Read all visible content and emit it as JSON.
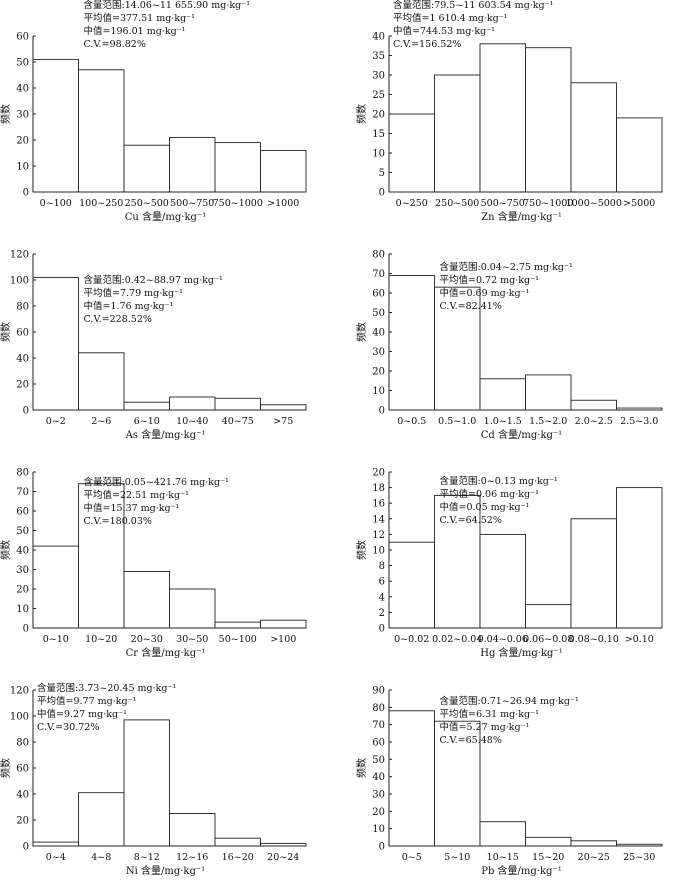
{
  "chart_data": [
    {
      "type": "bar",
      "ylabel": "频数",
      "xlabel": "Cu 含量/mg·kg⁻¹",
      "categories": [
        "0~100",
        "100~250",
        "250~500",
        "500~750",
        "750~1000",
        ">1000"
      ],
      "values": [
        51,
        47,
        18,
        21,
        19,
        16
      ],
      "ylim": [
        0,
        60
      ],
      "yticks": [
        0,
        10,
        20,
        30,
        40,
        50,
        60
      ],
      "stats": [
        "含量范围:14.06~11 655.90 mg·kg⁻¹",
        "平均值=377.51 mg·kg⁻¹",
        "中值=196.01 mg·kg⁻¹",
        "C.V.=98.82%"
      ],
      "stats_position": "top-right"
    },
    {
      "type": "bar",
      "ylabel": "频数",
      "xlabel": "Zn 含量/mg·kg⁻¹",
      "categories": [
        "0~250",
        "250~500",
        "500~750",
        "750~1000",
        "1000~5000",
        ">5000"
      ],
      "values": [
        20,
        30,
        38,
        37,
        28,
        19
      ],
      "ylim": [
        0,
        40
      ],
      "yticks": [
        0,
        5,
        10,
        15,
        20,
        25,
        30,
        35,
        40
      ],
      "stats": [
        "含量范围:79.5~11 603.54 mg·kg⁻¹",
        "平均值=1 610.4 mg·kg⁻¹",
        "中值=744.53 mg·kg⁻¹",
        "C.V.=156.52%"
      ],
      "stats_position": "top-left"
    },
    {
      "type": "bar",
      "ylabel": "频数",
      "xlabel": "As 含量/mg·kg⁻¹",
      "categories": [
        "0~2",
        "2~6",
        "6~10",
        "10~40",
        "40~75",
        ">75"
      ],
      "values": [
        102,
        44,
        6,
        10,
        9,
        4
      ],
      "ylim": [
        0,
        120
      ],
      "yticks": [
        0,
        20,
        40,
        60,
        80,
        100,
        120
      ],
      "stats": [
        "含量范围:0.42~88.97 mg·kg⁻¹",
        "平均值=7.79 mg·kg⁻¹",
        "中值=1.76 mg·kg⁻¹",
        "C.V.=228.52%"
      ],
      "stats_position": "top-right"
    },
    {
      "type": "bar",
      "ylabel": "频数",
      "xlabel": "Cd 含量/mg·kg⁻¹",
      "categories": [
        "0~0.5",
        "0.5~1.0",
        "1.0~1.5",
        "1.5~2.0",
        "2.0~2.5",
        "2.5~3.0"
      ],
      "values": [
        69,
        63,
        16,
        18,
        5,
        1
      ],
      "ylim": [
        0,
        80
      ],
      "yticks": [
        0,
        10,
        20,
        30,
        40,
        50,
        60,
        70,
        80
      ],
      "stats": [
        "含量范围:0.04~2.75 mg·kg⁻¹",
        "平均值=0.72 mg·kg⁻¹",
        "中值=0.69 mg·kg⁻¹",
        "C.V.=82.41%"
      ],
      "stats_position": "top-right"
    },
    {
      "type": "bar",
      "ylabel": "频数",
      "xlabel": "Cr 含量/mg·kg⁻¹",
      "categories": [
        "0~10",
        "10~20",
        "20~30",
        "30~50",
        "50~100",
        ">100"
      ],
      "values": [
        42,
        74,
        29,
        20,
        3,
        4
      ],
      "ylim": [
        0,
        80
      ],
      "yticks": [
        0,
        10,
        20,
        30,
        40,
        50,
        60,
        70,
        80
      ],
      "stats": [
        "含量范围:0.05~421.76 mg·kg⁻¹",
        "平均值=22.51 mg·kg⁻¹",
        "中值=15.37 mg·kg⁻¹",
        "C.V.=180.03%"
      ],
      "stats_position": "top-right"
    },
    {
      "type": "bar",
      "ylabel": "频数",
      "xlabel": "Hg 含量/mg·kg⁻¹",
      "categories": [
        "0~0.02",
        "0.02~0.04",
        "0.04~0.06",
        "0.06~0.08",
        "0.08~0.10",
        ">0.10"
      ],
      "values": [
        11,
        17,
        12,
        3,
        14,
        18
      ],
      "ylim": [
        0,
        20
      ],
      "yticks": [
        0,
        2,
        4,
        6,
        8,
        10,
        12,
        14,
        16,
        18,
        20
      ],
      "stats": [
        "含量范围:0~0.13 mg·kg⁻¹",
        "平均值=0.06 mg·kg⁻¹",
        "中值=0.05 mg·kg⁻¹",
        "C.V.=64.52%"
      ],
      "stats_position": "top-right"
    },
    {
      "type": "bar",
      "ylabel": "频数",
      "xlabel": "Ni 含量/mg·kg⁻¹",
      "categories": [
        "0~4",
        "4~8",
        "8~12",
        "12~16",
        "16~20",
        "20~24"
      ],
      "values": [
        3,
        41,
        97,
        25,
        6,
        2
      ],
      "ylim": [
        0,
        120
      ],
      "yticks": [
        0,
        20,
        40,
        60,
        80,
        100,
        120
      ],
      "stats": [
        "含量范围:3.73~20.45 mg·kg⁻¹",
        "平均值=9.77 mg·kg⁻¹",
        "中值=9.27 mg·kg⁻¹",
        "C.V.=30.72%"
      ],
      "stats_position": "top-left"
    },
    {
      "type": "bar",
      "ylabel": "频数",
      "xlabel": "Pb 含量/mg·kg⁻¹",
      "categories": [
        "0~5",
        "5~10",
        "10~15",
        "15~20",
        "20~25",
        "25~30"
      ],
      "values": [
        78,
        72,
        14,
        5,
        3,
        1
      ],
      "ylim": [
        0,
        90
      ],
      "yticks": [
        0,
        10,
        20,
        30,
        40,
        50,
        60,
        70,
        80,
        90
      ],
      "stats": [
        "含量范围:0.71~26.94 mg·kg⁻¹",
        "平均值=6.31 mg·kg⁻¹",
        "中值=5.27 mg·kg⁻¹",
        "C.V.=65.48%"
      ],
      "stats_position": "top-right"
    }
  ]
}
